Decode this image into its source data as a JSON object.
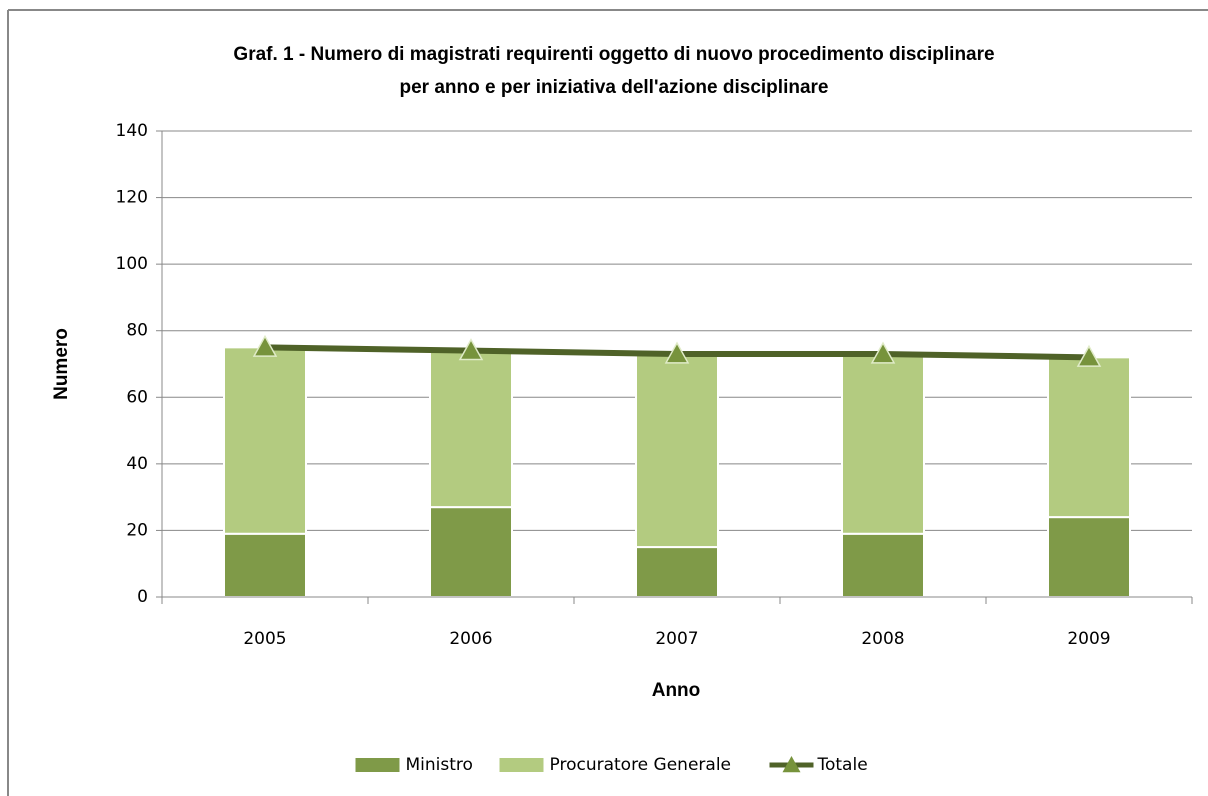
{
  "chart_data": {
    "type": "bar",
    "stacked": true,
    "title": [
      "Graf. 1 - Numero di magistrati requirenti oggetto di nuovo procedimento disciplinare",
      "per anno e per iniziativa  dell'azione disciplinare"
    ],
    "xlabel": "Anno",
    "ylabel": "Numero",
    "categories": [
      "2005",
      "2006",
      "2007",
      "2008",
      "2009"
    ],
    "series": [
      {
        "name": "Ministro",
        "color": "#7f9a48",
        "values": [
          19,
          27,
          15,
          19,
          24
        ]
      },
      {
        "name": "Procuratore Generale",
        "color": "#b3cb80",
        "values": [
          56,
          47,
          58,
          54,
          48
        ]
      },
      {
        "name": "Totale",
        "type": "line",
        "color": "#4f6228",
        "marker_color": "#77933c",
        "values": [
          75,
          74,
          73,
          73,
          72
        ]
      }
    ],
    "ylim": [
      0,
      140
    ],
    "yticks": [
      0,
      20,
      40,
      60,
      80,
      100,
      120,
      140
    ],
    "grid": true,
    "legend": "bottom"
  }
}
